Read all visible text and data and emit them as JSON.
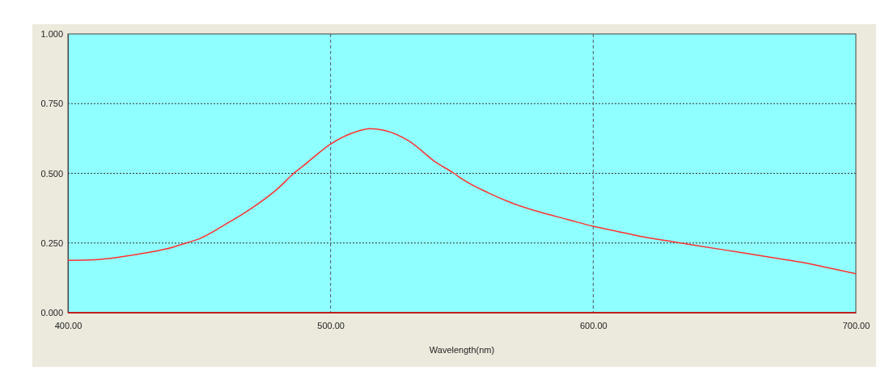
{
  "chart_data": {
    "type": "line",
    "xlabel": "Wavelength(nm)",
    "xlim": [
      400,
      700
    ],
    "ylim": [
      0,
      1
    ],
    "xticks": [
      {
        "value": 400,
        "label": "400.00"
      },
      {
        "value": 500,
        "label": "500.00"
      },
      {
        "value": 600,
        "label": "600.00"
      },
      {
        "value": 700,
        "label": "700.00"
      }
    ],
    "yticks": [
      {
        "value": 0,
        "label": "0.000"
      },
      {
        "value": 0.25,
        "label": "0.250"
      },
      {
        "value": 0.5,
        "label": "0.500"
      },
      {
        "value": 0.75,
        "label": "0.750"
      },
      {
        "value": 1,
        "label": "1.000"
      }
    ],
    "grid": true,
    "marker": "none",
    "line_style": "solid",
    "series": [
      {
        "color": "#ff3030",
        "x": [
          400,
          410,
          420,
          430,
          440,
          445,
          450,
          460,
          470,
          480,
          486,
          490,
          500,
          510,
          515,
          520,
          530,
          540,
          547,
          550,
          560,
          570,
          580,
          590,
          600,
          610,
          620,
          630,
          640,
          650,
          660,
          670,
          680,
          690,
          700
        ],
        "values": [
          0.188,
          0.19,
          0.2,
          0.215,
          0.235,
          0.25,
          0.265,
          0.317,
          0.375,
          0.446,
          0.5,
          0.53,
          0.605,
          0.65,
          0.66,
          0.655,
          0.615,
          0.54,
          0.5,
          0.48,
          0.43,
          0.39,
          0.36,
          0.335,
          0.31,
          0.29,
          0.27,
          0.255,
          0.24,
          0.225,
          0.21,
          0.195,
          0.18,
          0.16,
          0.14
        ]
      },
      {
        "color": "#e00000",
        "x": [
          400,
          700
        ],
        "values": [
          0,
          0
        ]
      }
    ]
  }
}
